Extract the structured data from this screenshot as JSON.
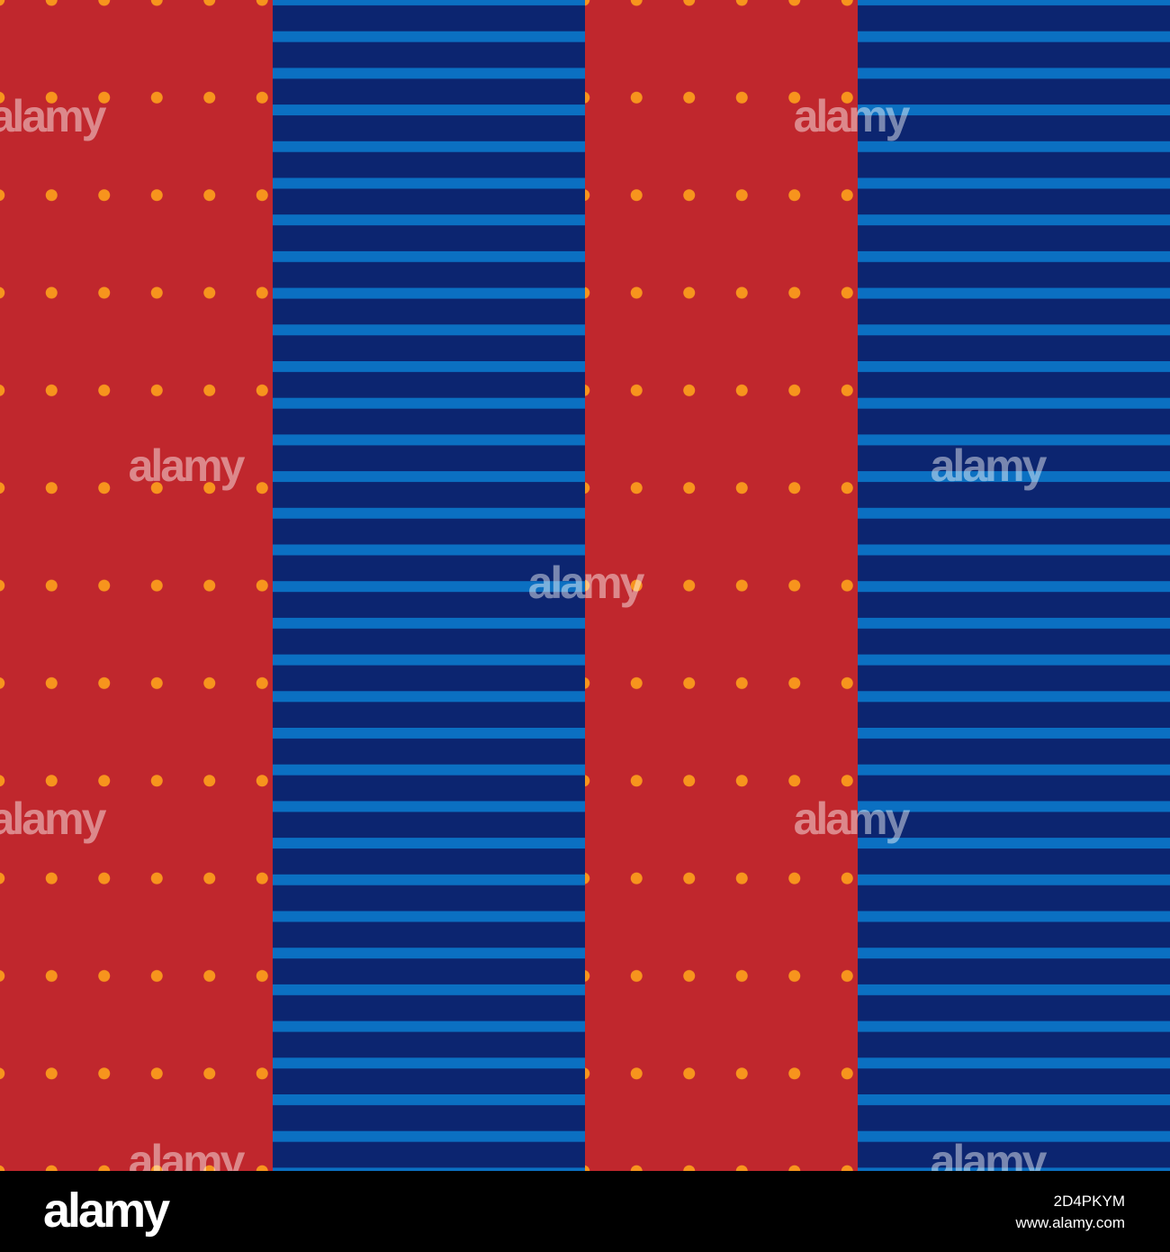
{
  "watermark": "alamy",
  "footer": {
    "logo": "alamy",
    "image_id": "2D4PKYM",
    "url": "www.alamy.com"
  }
}
